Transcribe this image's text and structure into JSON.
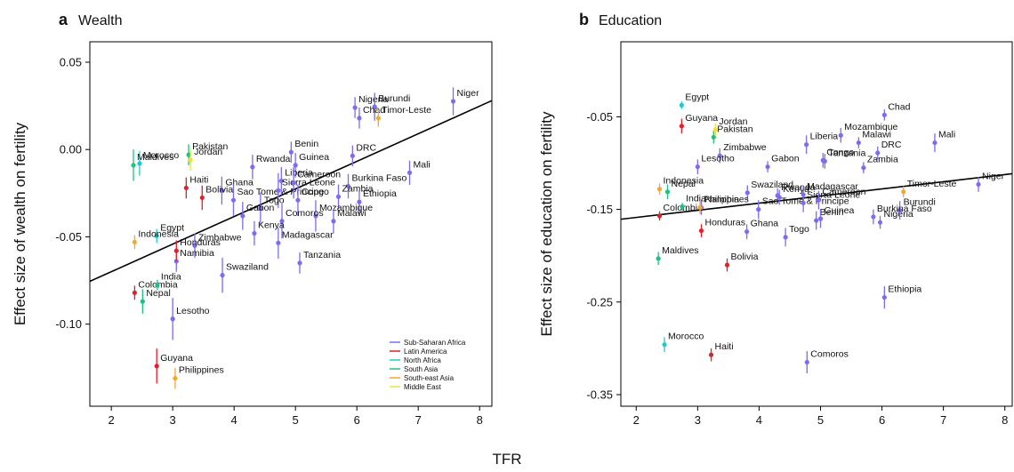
{
  "x_label": "TFR",
  "chart_data": [
    {
      "type": "scatter",
      "panel_label": "a",
      "title": "Wealth",
      "y_label": "Effect size of wealth on fertility",
      "xlim": [
        1.65,
        8.2
      ],
      "ylim": [
        -0.147,
        0.0617
      ],
      "xticks": [
        2,
        3,
        4,
        5,
        6,
        7,
        8
      ],
      "yticks": [
        0.05,
        {
          "value": 0,
          "label": "0.00"
        },
        -0.05,
        {
          "value": -0.1,
          "label": "-0.10"
        }
      ],
      "legend": "bottom right",
      "fit": {
        "x": [
          1.65,
          8.2
        ],
        "y": [
          -0.0755,
          0.028
        ]
      },
      "series": [
        {
          "name": "Sub-Saharan Africa",
          "color": "#7b6cf0",
          "labels": [
            "Niger",
            "Nigeria",
            "Burundi",
            "Chad",
            "Benin",
            "Guinea",
            "DRC",
            "Rwanda",
            "Liberia",
            "Ghana",
            "Sao Tome & Principe",
            "Sierra Leone",
            "Cameroon",
            "Burkina Faso",
            "Mali",
            "Zambia",
            "Ethiopia",
            "Togo",
            "Gabon",
            "Congo",
            "Mozambique",
            "Malawi",
            "Comoros",
            "Kenya",
            "Zimbabwe",
            "Madagascar",
            "Namibia",
            "Tanzania",
            "Swaziland",
            "Lesotho"
          ],
          "x": [
            7.57,
            5.97,
            6.29,
            6.04,
            4.93,
            5.0,
            5.93,
            4.3,
            4.77,
            3.8,
            3.99,
            4.72,
            4.97,
            5.86,
            6.86,
            5.7,
            6.04,
            4.43,
            4.14,
            5.04,
            5.33,
            5.62,
            4.78,
            4.33,
            3.36,
            4.72,
            3.06,
            5.07,
            3.81,
            3.0
          ],
          "values": [
            0.0276,
            0.024,
            0.0245,
            0.018,
            -0.0015,
            -0.009,
            -0.0036,
            -0.01,
            -0.018,
            -0.0235,
            -0.029,
            -0.0235,
            -0.019,
            -0.021,
            -0.0133,
            -0.027,
            -0.03,
            -0.0337,
            -0.038,
            -0.029,
            -0.038,
            -0.041,
            -0.041,
            -0.048,
            -0.055,
            -0.0535,
            -0.064,
            -0.065,
            -0.072,
            -0.097
          ],
          "errors": [
            0.008,
            0.006,
            0.008,
            0.006,
            0.006,
            0.007,
            0.006,
            0.007,
            0.008,
            0.008,
            0.009,
            0.01,
            0.009,
            0.007,
            0.007,
            0.007,
            0.007,
            0.009,
            0.008,
            0.009,
            0.009,
            0.007,
            0.01,
            0.007,
            0.007,
            0.009,
            0.006,
            0.006,
            0.01,
            0.012
          ]
        },
        {
          "name": "Latin America",
          "color": "#e0202a",
          "labels": [
            "Haiti",
            "Bolivia",
            "Honduras",
            "Colombia",
            "Guyana"
          ],
          "x": [
            3.22,
            3.48,
            3.06,
            2.38,
            2.74
          ],
          "values": [
            -0.022,
            -0.0276,
            -0.058,
            -0.082,
            -0.124
          ],
          "errors": [
            0.006,
            0.007,
            0.006,
            0.004,
            0.01
          ]
        },
        {
          "name": "North Africa",
          "color": "#20c8d0",
          "labels": [
            "Morocco",
            "Egypt"
          ],
          "x": [
            2.46,
            2.74
          ],
          "values": [
            -0.008,
            -0.0495
          ],
          "errors": [
            0.007,
            0.004
          ]
        },
        {
          "name": "South Asia",
          "color": "#20c080",
          "labels": [
            "Pakistan",
            "Maldives",
            "India",
            "Nepal"
          ],
          "x": [
            3.26,
            2.36,
            2.75,
            2.51
          ],
          "values": [
            -0.003,
            -0.009,
            -0.0776,
            -0.087
          ],
          "errors": [
            0.006,
            0.009,
            0.003,
            0.007
          ]
        },
        {
          "name": "South-east Asia",
          "color": "#f0a830",
          "labels": [
            "Timor-Leste",
            "Indonesia",
            "Philippines"
          ],
          "x": [
            6.35,
            2.38,
            3.04
          ],
          "values": [
            0.018,
            -0.053,
            -0.131
          ],
          "errors": [
            0.005,
            0.004,
            0.006
          ]
        },
        {
          "name": "Middle East",
          "color": "#f0e040",
          "labels": [
            "Jordan"
          ],
          "x": [
            3.29
          ],
          "values": [
            -0.006
          ],
          "errors": [
            0.006
          ]
        }
      ]
    },
    {
      "type": "scatter",
      "panel_label": "b",
      "title": "Education",
      "y_label": "Effect size of education on fertility",
      "xlim": [
        1.75,
        8.12
      ],
      "ylim": [
        -0.3625,
        0.031
      ],
      "xticks": [
        2,
        3,
        4,
        5,
        6,
        7,
        8
      ],
      "yticks": [
        -0.05,
        -0.15,
        -0.25,
        -0.35
      ],
      "fit": {
        "x": [
          1.75,
          8.12
        ],
        "y": [
          -0.1606,
          -0.1115
        ]
      },
      "series": [
        {
          "color": "#7b6cf0",
          "labels": [
            "Niger",
            "Nigeria",
            "Burundi",
            "Chad",
            "Benin",
            "Guinea",
            "DRC",
            "Rwanda",
            "Liberia",
            "Ghana",
            "Sao Tome & Principe",
            "Sierra Leone",
            "Cameroon",
            "Burkina Faso",
            "Mali",
            "Zambia",
            "Ethiopia",
            "Togo",
            "Gabon",
            "Congo",
            "Mozambique",
            "Malawi",
            "Comoros",
            "Kenya",
            "Zimbabwe",
            "Madagascar",
            "Namibia",
            "Tanzania",
            "Swaziland",
            "Lesotho"
          ],
          "x": [
            7.57,
            5.97,
            6.29,
            6.04,
            4.93,
            5.0,
            5.93,
            4.3,
            4.77,
            3.8,
            3.99,
            4.72,
            4.97,
            5.86,
            6.86,
            5.7,
            6.04,
            4.43,
            4.14,
            5.04,
            5.33,
            5.62,
            4.78,
            4.33,
            3.36,
            4.72,
            3.06,
            5.07,
            3.81,
            3.0
          ],
          "values": [
            -0.123,
            -0.164,
            -0.151,
            -0.048,
            -0.162,
            -0.16,
            -0.089,
            -0.135,
            -0.08,
            -0.174,
            -0.15,
            -0.143,
            -0.14,
            -0.158,
            -0.078,
            -0.105,
            -0.245,
            -0.18,
            -0.104,
            -0.097,
            -0.07,
            -0.078,
            -0.315,
            -0.137,
            -0.092,
            -0.134,
            -0.148,
            -0.098,
            -0.132,
            -0.104
          ],
          "errors": [
            0.008,
            0.007,
            0.01,
            0.006,
            0.01,
            0.01,
            0.007,
            0.008,
            0.01,
            0.008,
            0.01,
            0.01,
            0.01,
            0.008,
            0.01,
            0.006,
            0.012,
            0.01,
            0.006,
            0.008,
            0.008,
            0.006,
            0.012,
            0.008,
            0.008,
            0.01,
            0.008,
            0.008,
            0.008,
            0.008
          ]
        },
        {
          "color": "#e0202a",
          "labels": [
            "Haiti",
            "Bolivia",
            "Honduras",
            "Colombia",
            "Guyana"
          ],
          "x": [
            3.22,
            3.48,
            3.06,
            2.38,
            2.74
          ],
          "values": [
            -0.307,
            -0.21,
            -0.173,
            -0.157,
            -0.06
          ],
          "errors": [
            0.007,
            0.007,
            0.007,
            0.005,
            0.008
          ]
        },
        {
          "color": "#20c8d0",
          "labels": [
            "Morocco",
            "Egypt"
          ],
          "x": [
            2.46,
            2.74
          ],
          "values": [
            -0.296,
            -0.0375
          ],
          "errors": [
            0.008,
            0.004
          ]
        },
        {
          "color": "#20c080",
          "labels": [
            "Pakistan",
            "Maldives",
            "India",
            "Nepal"
          ],
          "x": [
            3.26,
            2.36,
            2.75,
            2.51
          ],
          "values": [
            -0.072,
            -0.203,
            -0.147,
            -0.131
          ],
          "errors": [
            0.007,
            0.007,
            0.004,
            0.008
          ]
        },
        {
          "color": "#f0a830",
          "labels": [
            "Timor-Leste",
            "Indonesia",
            "Philippines"
          ],
          "x": [
            6.35,
            2.38,
            3.04
          ],
          "values": [
            -0.131,
            -0.128,
            -0.148
          ],
          "errors": [
            0.006,
            0.006,
            0.007
          ]
        },
        {
          "color": "#f0e040",
          "labels": [
            "Jordan"
          ],
          "x": [
            3.29
          ],
          "values": [
            -0.064
          ],
          "errors": [
            0.007
          ]
        }
      ]
    }
  ]
}
